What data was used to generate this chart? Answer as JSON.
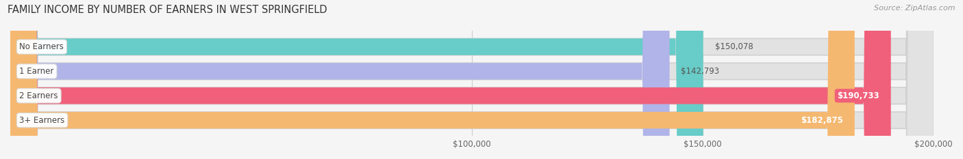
{
  "title": "FAMILY INCOME BY NUMBER OF EARNERS IN WEST SPRINGFIELD",
  "source": "Source: ZipAtlas.com",
  "categories": [
    "No Earners",
    "1 Earner",
    "2 Earners",
    "3+ Earners"
  ],
  "values": [
    150078,
    142793,
    190733,
    182875
  ],
  "bar_colors": [
    "#68ccc8",
    "#b0b4e8",
    "#f0607a",
    "#f5b870"
  ],
  "value_labels": [
    "$150,078",
    "$142,793",
    "$190,733",
    "$182,875"
  ],
  "xmax": 200000,
  "xticks": [
    100000,
    150000,
    200000
  ],
  "xtick_labels": [
    "$100,000",
    "$150,000",
    "$200,000"
  ],
  "background_color": "#f5f5f5",
  "bar_bg_color": "#e2e2e2",
  "title_fontsize": 10.5,
  "label_fontsize": 8.5,
  "value_fontsize": 8.5,
  "source_fontsize": 8
}
